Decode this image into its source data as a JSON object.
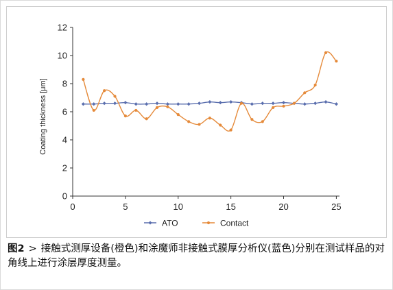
{
  "chart_data": {
    "type": "line",
    "title": "",
    "xlabel": "",
    "ylabel": "Coating thickness [μm]",
    "xlim": [
      0,
      25.3
    ],
    "ylim": [
      0,
      12
    ],
    "xticks": [
      0,
      5,
      10,
      15,
      20,
      25
    ],
    "yticks": [
      0,
      2,
      4,
      6,
      8,
      10,
      12
    ],
    "grid": false,
    "legend_position": "bottom-center",
    "x": [
      1,
      2,
      3,
      4,
      5,
      6,
      7,
      8,
      9,
      10,
      11,
      12,
      13,
      14,
      15,
      16,
      17,
      18,
      19,
      20,
      21,
      22,
      23,
      24,
      25
    ],
    "series": [
      {
        "name": "ATO",
        "color": "#5b6fae",
        "marker": "diamond",
        "values": [
          6.55,
          6.55,
          6.6,
          6.6,
          6.65,
          6.55,
          6.55,
          6.6,
          6.55,
          6.55,
          6.55,
          6.6,
          6.7,
          6.65,
          6.7,
          6.65,
          6.55,
          6.6,
          6.6,
          6.65,
          6.6,
          6.55,
          6.6,
          6.7,
          6.55
        ]
      },
      {
        "name": "Contact",
        "color": "#e58a3a",
        "marker": "circle",
        "values": [
          8.3,
          6.1,
          7.5,
          7.1,
          5.7,
          6.1,
          5.5,
          6.3,
          6.35,
          5.8,
          5.3,
          5.1,
          5.55,
          5.05,
          4.7,
          6.6,
          5.45,
          5.3,
          6.3,
          6.4,
          6.6,
          7.35,
          7.9,
          10.2,
          9.6
        ]
      }
    ]
  },
  "caption": {
    "figure_no": "图2",
    "separator": ">",
    "text": "接触式测厚设备(橙色)和涂魔师非接触式膜厚分析仪(蓝色)分别在测试样品的对角线上进行涂层厚度测量。"
  }
}
